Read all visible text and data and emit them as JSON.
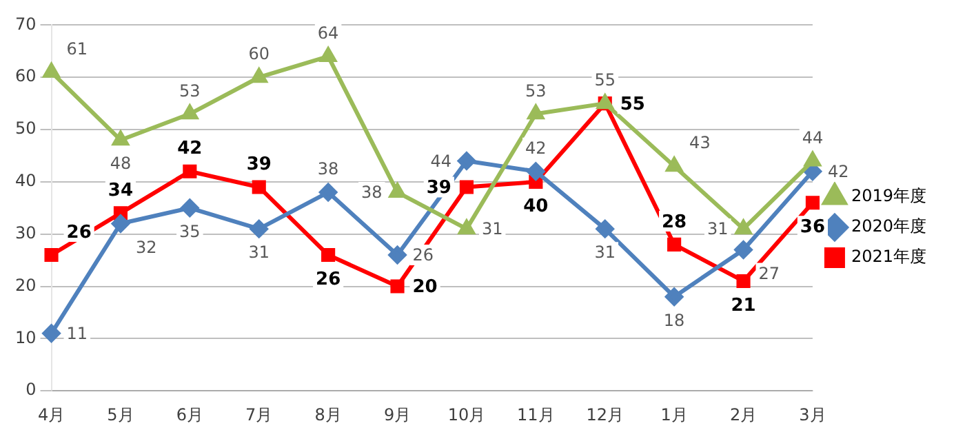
{
  "chart_data": {
    "type": "line",
    "categories": [
      "4月",
      "5月",
      "6月",
      "7月",
      "8月",
      "9月",
      "10月",
      "11月",
      "12月",
      "1月",
      "2月",
      "3月"
    ],
    "series": [
      {
        "name": "2019年度",
        "color": "#9bbb59",
        "marker": "triangle",
        "values": [
          61,
          48,
          53,
          60,
          64,
          38,
          31,
          53,
          55,
          43,
          31,
          44
        ]
      },
      {
        "name": "2020年度",
        "color": "#4f81bd",
        "marker": "diamond",
        "values": [
          11,
          32,
          35,
          31,
          38,
          26,
          44,
          42,
          31,
          18,
          27,
          42
        ]
      },
      {
        "name": "2021年度",
        "color": "#ff0000",
        "marker": "square",
        "values": [
          26,
          34,
          42,
          39,
          26,
          20,
          39,
          40,
          55,
          28,
          21,
          36
        ]
      }
    ],
    "ylim": [
      0,
      70
    ],
    "yticks": [
      0,
      10,
      20,
      30,
      40,
      50,
      60,
      70
    ],
    "grid": "y",
    "legend": "right",
    "data_labels": true,
    "line_style": "solid"
  }
}
